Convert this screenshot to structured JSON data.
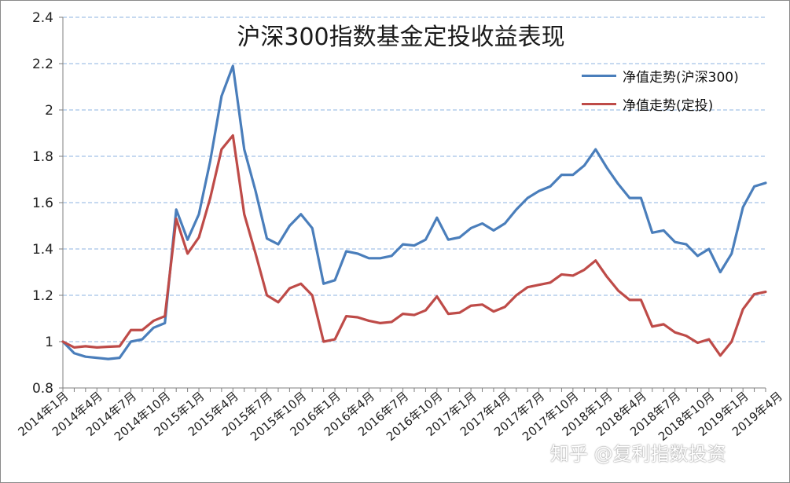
{
  "chart_data": {
    "type": "line",
    "title": "沪深300指数基金定投收益表现",
    "ylim": [
      0.8,
      2.4
    ],
    "yticks": [
      0.8,
      1,
      1.2,
      1.4,
      1.6,
      1.8,
      2,
      2.2,
      2.4
    ],
    "grid": true,
    "legend_position": "top-right",
    "x_tick_labels": [
      "2014年1月",
      "2014年4月",
      "2014年7月",
      "2014年10月",
      "2015年1月",
      "2015年4月",
      "2015年7月",
      "2015年10月",
      "2016年1月",
      "2016年4月",
      "2016年7月",
      "2016年10月",
      "2017年1月",
      "2017年4月",
      "2017年7月",
      "2017年10月",
      "2018年1月",
      "2018年4月",
      "2018年7月",
      "2018年10月",
      "2019年1月",
      "2019年4月"
    ],
    "x_tick_every": 3,
    "series": [
      {
        "name": "净值走势(沪深300)",
        "color": "#4a7ebb",
        "values": [
          1.0,
          0.95,
          0.935,
          0.93,
          0.925,
          0.93,
          1.0,
          1.01,
          1.06,
          1.08,
          1.57,
          1.44,
          1.55,
          1.78,
          2.06,
          2.19,
          1.83,
          1.65,
          1.445,
          1.42,
          1.5,
          1.55,
          1.49,
          1.25,
          1.265,
          1.39,
          1.38,
          1.36,
          1.36,
          1.37,
          1.42,
          1.415,
          1.44,
          1.535,
          1.44,
          1.45,
          1.49,
          1.51,
          1.48,
          1.51,
          1.57,
          1.62,
          1.65,
          1.67,
          1.72,
          1.72,
          1.76,
          1.83,
          1.75,
          1.68,
          1.62,
          1.62,
          1.47,
          1.48,
          1.43,
          1.42,
          1.37,
          1.4,
          1.3,
          1.38,
          1.58,
          1.67,
          1.685
        ]
      },
      {
        "name": "净值走势(定投)",
        "color": "#be4b48",
        "values": [
          1.0,
          0.975,
          0.98,
          0.975,
          0.978,
          0.98,
          1.05,
          1.05,
          1.09,
          1.11,
          1.53,
          1.38,
          1.45,
          1.62,
          1.83,
          1.89,
          1.55,
          1.38,
          1.2,
          1.17,
          1.23,
          1.25,
          1.2,
          1.0,
          1.01,
          1.11,
          1.105,
          1.09,
          1.08,
          1.085,
          1.12,
          1.115,
          1.135,
          1.195,
          1.12,
          1.125,
          1.155,
          1.16,
          1.13,
          1.15,
          1.2,
          1.235,
          1.245,
          1.255,
          1.29,
          1.285,
          1.31,
          1.35,
          1.28,
          1.22,
          1.18,
          1.18,
          1.065,
          1.075,
          1.04,
          1.025,
          0.995,
          1.01,
          0.94,
          1.0,
          1.14,
          1.205,
          1.215
        ]
      }
    ]
  },
  "watermark": "知乎 @复利指数投资"
}
